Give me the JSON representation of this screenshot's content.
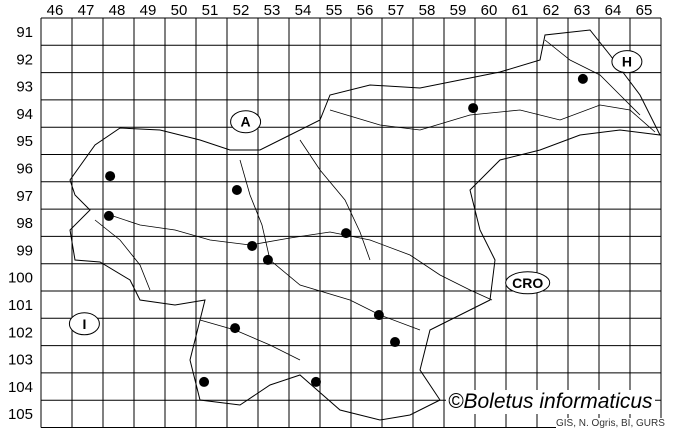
{
  "map": {
    "columns": [
      "46",
      "47",
      "48",
      "49",
      "50",
      "51",
      "52",
      "53",
      "54",
      "55",
      "56",
      "57",
      "58",
      "59",
      "60",
      "61",
      "62",
      "63",
      "64",
      "65"
    ],
    "rows": [
      "91",
      "92",
      "93",
      "94",
      "95",
      "96",
      "97",
      "98",
      "99",
      "100",
      "101",
      "102",
      "103",
      "104",
      "105"
    ],
    "country_labels": [
      {
        "id": "A",
        "text": "A",
        "x": 52.6,
        "y": 94.8
      },
      {
        "id": "H",
        "text": "H",
        "x": 64.9,
        "y": 92.6
      },
      {
        "id": "CRO",
        "text": "CRO",
        "x": 61.7,
        "y": 100.7
      },
      {
        "id": "I",
        "text": "I",
        "x": 47.4,
        "y": 102.2
      }
    ],
    "records": [
      {
        "x": 48.23,
        "y": 96.79
      },
      {
        "x": 48.19,
        "y": 98.25
      },
      {
        "x": 52.32,
        "y": 97.3
      },
      {
        "x": 52.81,
        "y": 99.35
      },
      {
        "x": 53.32,
        "y": 99.86
      },
      {
        "x": 55.84,
        "y": 98.88
      },
      {
        "x": 59.94,
        "y": 94.3
      },
      {
        "x": 63.48,
        "y": 93.23
      },
      {
        "x": 56.9,
        "y": 101.88
      },
      {
        "x": 57.42,
        "y": 102.87
      },
      {
        "x": 52.26,
        "y": 102.36
      },
      {
        "x": 51.26,
        "y": 104.33
      },
      {
        "x": 54.87,
        "y": 104.33
      }
    ],
    "record_color": "#000000"
  },
  "copyright": "©Boletus informaticus",
  "credit": "GIS, N. Ogris, BI, GURS"
}
